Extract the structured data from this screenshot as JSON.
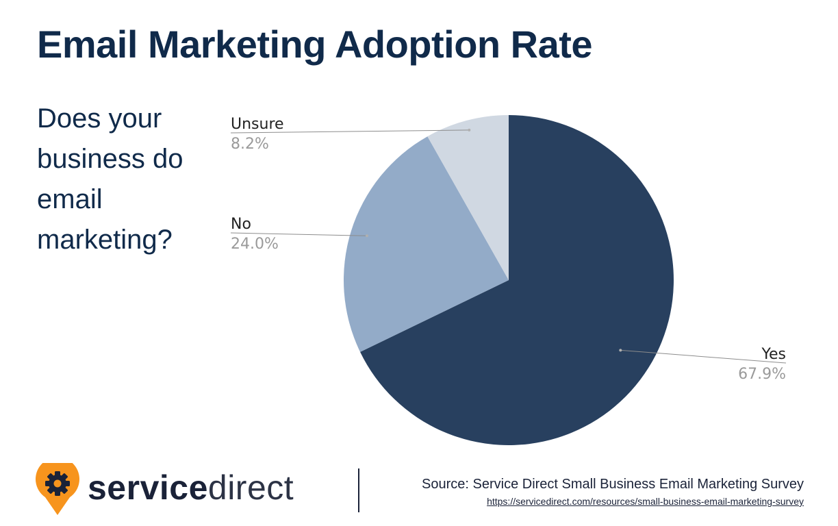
{
  "title": "Email Marketing Adoption Rate",
  "question": "Does your business do email marketing?",
  "chart_data": {
    "type": "pie",
    "categories": [
      "Yes",
      "No",
      "Unsure"
    ],
    "values": [
      67.9,
      24.0,
      8.2
    ],
    "value_labels": [
      "67.9%",
      "24.0%",
      "8.2%"
    ],
    "colors": [
      "#28405f",
      "#93abc8",
      "#d0d8e2"
    ],
    "start_angle_deg": 0,
    "direction": "clockwise"
  },
  "footer": {
    "logo_icon": "gear-pin-icon",
    "logo_color": "#f7941d",
    "brand_bold": "service",
    "brand_light": "direct",
    "source": "Source: Service Direct Small Business Email Marketing Survey",
    "url": "https://servicedirect.com/resources/small-business-email-marketing-survey"
  }
}
